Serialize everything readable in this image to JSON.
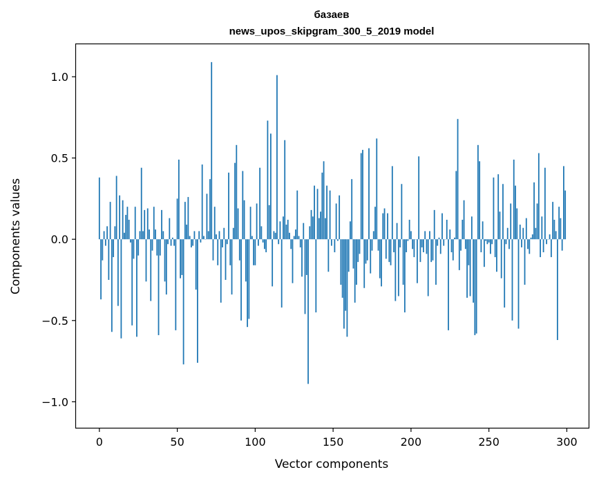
{
  "chart_data": {
    "type": "bar",
    "title_line1": "базаев",
    "title_line2": "news_upos_skipgram_300_5_2019 model",
    "xlabel": "Vector components",
    "ylabel": "Components values",
    "xlim": [
      -15,
      314
    ],
    "ylim": [
      -1.16,
      1.2
    ],
    "xticks": [
      0,
      50,
      100,
      150,
      200,
      250,
      300
    ],
    "xtick_labels": [
      "0",
      "50",
      "100",
      "150",
      "200",
      "250",
      "300"
    ],
    "yticks": [
      -1.0,
      -0.5,
      0.0,
      0.5,
      1.0
    ],
    "ytick_labels": [
      "−1.0",
      "−0.5",
      "0.0",
      "0.5",
      "1.0"
    ],
    "color": "#1f77b4",
    "values": [
      0.38,
      -0.37,
      -0.13,
      0.05,
      -0.04,
      0.08,
      -0.25,
      0.23,
      -0.57,
      -0.11,
      0.08,
      0.39,
      -0.41,
      0.27,
      -0.61,
      0.24,
      0.04,
      0.15,
      0.2,
      0.12,
      -0.02,
      -0.53,
      -0.12,
      0.2,
      -0.6,
      -0.1,
      0.05,
      0.44,
      0.05,
      0.18,
      -0.26,
      0.19,
      0.06,
      -0.38,
      -0.07,
      0.2,
      0.06,
      -0.1,
      -0.59,
      -0.1,
      0.18,
      0.05,
      -0.26,
      -0.34,
      -0.03,
      0.13,
      -0.04,
      0.01,
      -0.04,
      -0.56,
      0.25,
      0.49,
      -0.24,
      -0.22,
      -0.77,
      0.23,
      0.09,
      0.26,
      0.02,
      -0.05,
      -0.04,
      0.05,
      -0.31,
      -0.76,
      0.05,
      -0.02,
      0.46,
      0.02,
      0.0,
      0.28,
      0.05,
      0.37,
      1.09,
      -0.13,
      0.2,
      0.03,
      -0.16,
      0.05,
      -0.39,
      -0.05,
      0.07,
      -0.25,
      -0.03,
      0.41,
      -0.16,
      -0.34,
      0.07,
      0.47,
      0.58,
      0.19,
      -0.13,
      -0.5,
      0.42,
      0.24,
      -0.26,
      -0.54,
      -0.49,
      0.2,
      0.02,
      -0.16,
      -0.16,
      0.22,
      -0.04,
      0.44,
      0.08,
      -0.02,
      -0.06,
      -0.08,
      0.73,
      0.21,
      0.65,
      -0.29,
      0.05,
      0.04,
      1.01,
      -0.03,
      0.11,
      -0.42,
      0.14,
      0.61,
      0.09,
      0.12,
      0.04,
      -0.06,
      -0.27,
      0.02,
      0.06,
      0.3,
      0.02,
      -0.05,
      -0.23,
      0.1,
      -0.46,
      -0.22,
      -0.89,
      0.08,
      0.18,
      0.14,
      0.33,
      -0.45,
      0.31,
      0.13,
      0.17,
      0.41,
      0.48,
      0.13,
      0.33,
      -0.2,
      0.3,
      -0.04,
      0.0,
      -0.08,
      0.22,
      -0.01,
      0.27,
      -0.28,
      -0.36,
      -0.55,
      -0.44,
      -0.6,
      -0.2,
      0.11,
      0.37,
      -0.18,
      -0.39,
      -0.28,
      -0.14,
      -0.09,
      0.53,
      0.55,
      -0.3,
      -0.15,
      -0.13,
      0.56,
      -0.21,
      -0.07,
      0.05,
      0.2,
      0.62,
      -0.07,
      -0.24,
      -0.29,
      0.16,
      0.19,
      -0.12,
      0.16,
      -0.14,
      -0.16,
      0.45,
      -0.08,
      -0.38,
      0.1,
      -0.35,
      -0.05,
      0.34,
      -0.28,
      -0.45,
      -0.08,
      -0.01,
      0.12,
      0.05,
      -0.06,
      -0.11,
      0.0,
      -0.27,
      0.51,
      -0.14,
      -0.05,
      -0.08,
      0.05,
      -0.09,
      -0.35,
      0.05,
      -0.14,
      -0.13,
      0.18,
      -0.28,
      -0.04,
      0.01,
      -0.09,
      0.16,
      -0.04,
      0.0,
      0.12,
      -0.56,
      0.06,
      -0.08,
      -0.13,
      0.01,
      0.42,
      0.74,
      -0.19,
      -0.07,
      0.12,
      0.24,
      -0.06,
      -0.36,
      -0.16,
      -0.35,
      0.14,
      -0.39,
      -0.59,
      -0.58,
      0.58,
      0.48,
      -0.08,
      0.11,
      -0.17,
      -0.01,
      -0.03,
      -0.02,
      -0.09,
      -0.03,
      0.38,
      -0.11,
      -0.2,
      0.4,
      0.17,
      -0.24,
      0.34,
      -0.42,
      -0.03,
      0.07,
      -0.06,
      0.22,
      -0.5,
      0.49,
      0.33,
      0.19,
      -0.55,
      0.09,
      -0.05,
      0.07,
      -0.28,
      0.13,
      -0.06,
      -0.09,
      0.01,
      0.03,
      0.35,
      0.07,
      0.22,
      0.53,
      -0.11,
      0.14,
      -0.08,
      0.44,
      -0.03,
      0.0,
      0.03,
      -0.11,
      0.23,
      0.12,
      0.05,
      -0.62,
      0.2,
      0.13,
      -0.07,
      0.45,
      0.3
    ]
  }
}
